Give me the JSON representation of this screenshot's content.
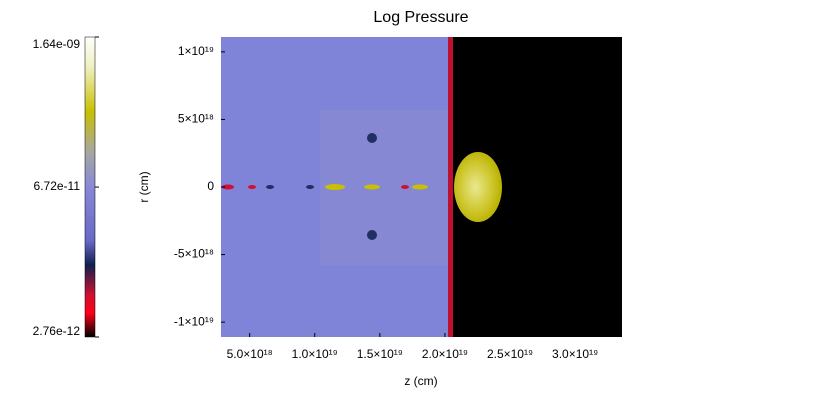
{
  "chart_data": {
    "type": "heatmap",
    "title": "Log Pressure",
    "x_label": "z (cm)",
    "y_label": "r (cm)",
    "xlim": [
      2.8e+18,
      3.36e+19
    ],
    "xticks": [
      {
        "value": 5e+18,
        "label": "5.0×10¹⁸"
      },
      {
        "value": 1e+19,
        "label": "1.0×10¹⁹"
      },
      {
        "value": 1.5e+19,
        "label": "1.5×10¹⁹"
      },
      {
        "value": 2e+19,
        "label": "2.0×10¹⁹"
      },
      {
        "value": 2.5e+19,
        "label": "2.5×10¹⁹"
      },
      {
        "value": 3e+19,
        "label": "3.0×10¹⁹"
      }
    ],
    "ylim": [
      -1.11e+19,
      1.11e+19
    ],
    "yticks": [
      {
        "value": 1e+19,
        "label": "1×10¹⁹"
      },
      {
        "value": 5e+18,
        "label": "5×10¹⁸"
      },
      0,
      {
        "value": -5e+18,
        "label": "-5×10¹⁸"
      },
      {
        "value": -1e+19,
        "label": "-1×10¹⁹"
      }
    ],
    "colorbar": {
      "scale": "log",
      "lim": [
        2.76e-12,
        1.64e-09
      ],
      "ticks": [
        {
          "value": 1.64e-09,
          "label": "1.64e-09"
        },
        {
          "value": 6.72e-11,
          "label": "6.72e-11"
        },
        {
          "value": 2.76e-12,
          "label": "2.76e-12"
        }
      ]
    }
  }
}
